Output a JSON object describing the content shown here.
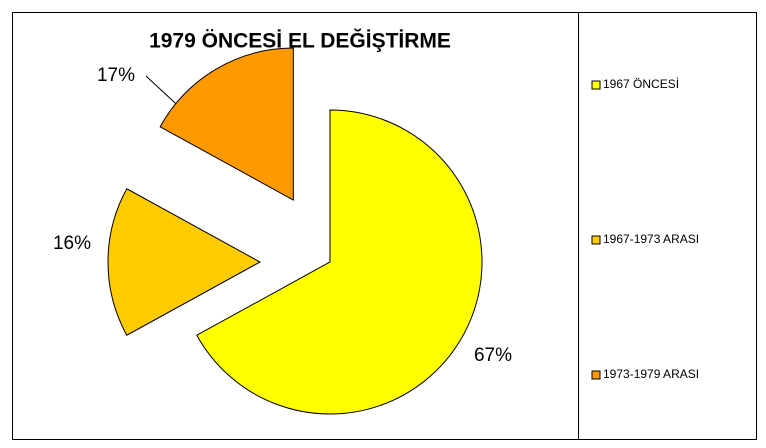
{
  "chart_data": {
    "type": "pie",
    "title": "1979 ÖNCESİ EL DEĞİŞTİRME",
    "categories": [
      "1967 ÖNCESİ",
      "1967-1973 ARASI",
      "1973-1979 ARASI"
    ],
    "values": [
      67,
      16,
      17
    ],
    "value_labels": [
      "67%",
      "16%",
      "17%"
    ],
    "colors": [
      "#ffff00",
      "#ffcc00",
      "#ff9900"
    ],
    "legend": "right"
  }
}
